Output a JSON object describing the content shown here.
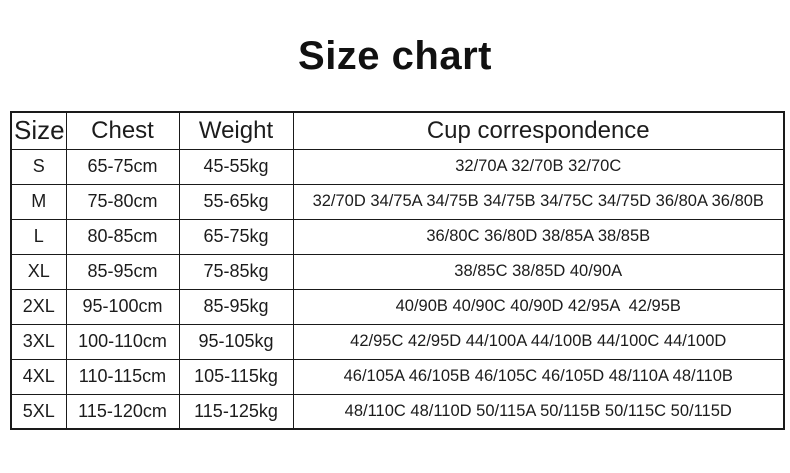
{
  "title": "Size chart",
  "table": {
    "headers": [
      "Size",
      "Chest",
      "Weight",
      "Cup correspondence"
    ],
    "rows": [
      {
        "size": "S",
        "chest": "65-75cm",
        "weight": "45-55kg",
        "cup": "32/70A 32/70B 32/70C"
      },
      {
        "size": "M",
        "chest": "75-80cm",
        "weight": "55-65kg",
        "cup": "32/70D 34/75A 34/75B 34/75B 34/75C 34/75D 36/80A 36/80B"
      },
      {
        "size": "L",
        "chest": "80-85cm",
        "weight": "65-75kg",
        "cup": "36/80C 36/80D 38/85A 38/85B"
      },
      {
        "size": "XL",
        "chest": "85-95cm",
        "weight": "75-85kg",
        "cup": "38/85C 38/85D 40/90A"
      },
      {
        "size": "2XL",
        "chest": "95-100cm",
        "weight": "85-95kg",
        "cup": "40/90B 40/90C 40/90D 42/95A  42/95B"
      },
      {
        "size": "3XL",
        "chest": "100-110cm",
        "weight": "95-105kg",
        "cup": "42/95C 42/95D 44/100A 44/100B 44/100C 44/100D"
      },
      {
        "size": "4XL",
        "chest": "110-115cm",
        "weight": "105-115kg",
        "cup": "46/105A 46/105B 46/105C 46/105D 48/110A 48/110B"
      },
      {
        "size": "5XL",
        "chest": "115-120cm",
        "weight": "115-125kg",
        "cup": "48/110C 48/110D 50/115A 50/115B 50/115C 50/115D"
      }
    ]
  },
  "colors": {
    "text": "#1c1c1c",
    "border": "#1a1a1a",
    "background": "#ffffff"
  }
}
